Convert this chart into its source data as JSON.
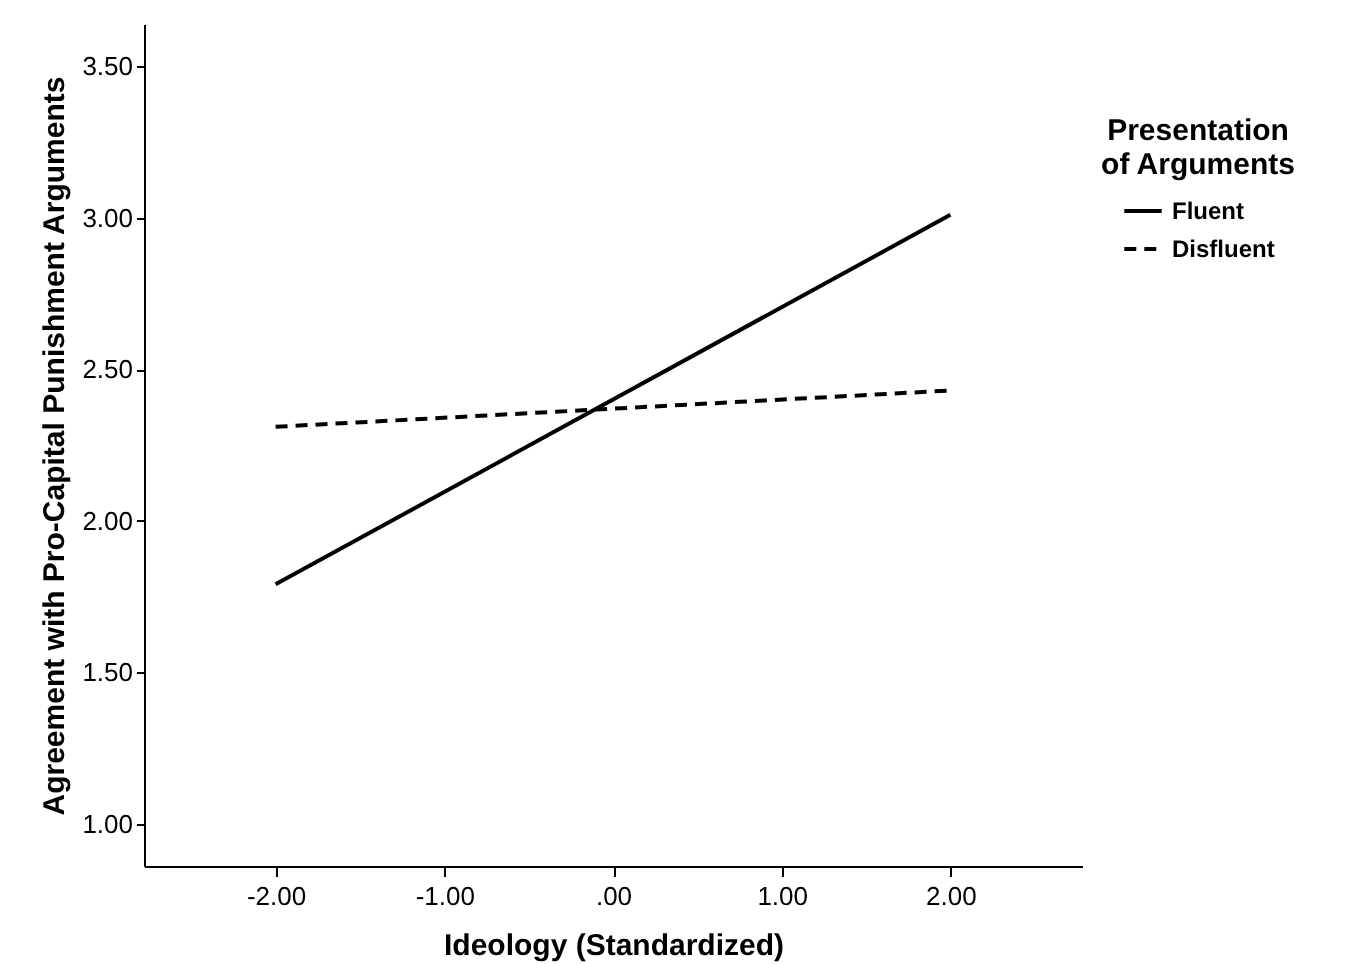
{
  "chart_data": {
    "type": "line",
    "xlabel": "Ideology (Standardized)",
    "ylabel": "Agreement with Pro-Capital Punishment Arguments",
    "legend_title": "Presentation of Arguments",
    "x": [
      -2,
      2
    ],
    "series": [
      {
        "name": "Fluent",
        "color": "#000000",
        "line_style": "solid",
        "values": [
          1.79,
          3.01
        ]
      },
      {
        "name": "Disfluent",
        "color": "#000000",
        "line_style": "dashed",
        "values": [
          2.31,
          2.43
        ]
      }
    ],
    "xlim": [
      -2.78,
      2.78
    ],
    "xticks": [
      {
        "value": -2,
        "label": "-2.00"
      },
      {
        "value": -1,
        "label": "-1.00"
      },
      {
        "value": 0,
        "label": ".00"
      },
      {
        "value": 1,
        "label": "1.00"
      },
      {
        "value": 2,
        "label": "2.00"
      }
    ],
    "ylim": [
      0.86,
      3.64
    ],
    "yticks": [
      {
        "value": 1,
        "label": "1.00"
      },
      {
        "value": 1.5,
        "label": "1.50"
      },
      {
        "value": 2,
        "label": "2.00"
      },
      {
        "value": 2.5,
        "label": "2.50"
      },
      {
        "value": 3,
        "label": "3.00"
      },
      {
        "value": 3.5,
        "label": "3.50"
      }
    ],
    "grid": false,
    "legend": "top right",
    "marker": "none"
  }
}
